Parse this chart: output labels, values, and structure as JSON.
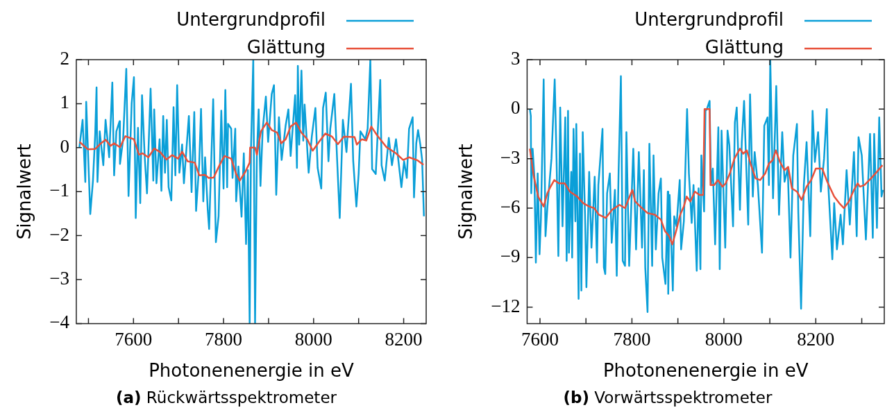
{
  "chart_data": [
    {
      "type": "line",
      "xlabel": "Photonenenergie in eV",
      "ylabel": "Signalwert",
      "legend": "top right",
      "grid": false,
      "xlim": [
        7473,
        8250
      ],
      "xticks": [
        {
          "value": 7500,
          "label": null
        },
        7600,
        {
          "value": 7700,
          "label": null
        },
        7800,
        {
          "value": 7900,
          "label": null
        },
        8000,
        {
          "value": 8100,
          "label": null
        },
        8200
      ],
      "ylim": [
        -4,
        2
      ],
      "yticks": [
        {
          "value": -4,
          "label": "−4"
        },
        {
          "value": -3,
          "label": "−3"
        },
        {
          "value": -2,
          "label": "−2"
        },
        {
          "value": -1,
          "label": "−1"
        },
        0,
        1,
        2
      ],
      "annotations": [
        "(a) Rückwärtsspektrometer"
      ],
      "series": [
        {
          "name": "Untergrundprofil",
          "color": "#0a9fd8",
          "x": [
            7480,
            7487,
            7493,
            7495,
            7504,
            7510,
            7515,
            7518,
            7520,
            7525,
            7533,
            7538,
            7546,
            7553,
            7557,
            7562,
            7569,
            7570,
            7577,
            7584,
            7589,
            7596,
            7601,
            7605,
            7610,
            7615,
            7619,
            7625,
            7630,
            7638,
            7644,
            7646,
            7651,
            7658,
            7662,
            7666,
            7670,
            7674,
            7678,
            7684,
            7689,
            7693,
            7697,
            7702,
            7708,
            7712,
            7723,
            7729,
            7735,
            7739,
            7746,
            7750,
            7755,
            7759,
            7765,
            7768,
            7777,
            7783,
            7789,
            7795,
            7800,
            7804,
            7808,
            7810,
            7817,
            7820,
            7826,
            7828,
            7833,
            7840,
            7845,
            7850,
            7854,
            7858,
            7861,
            7866,
            7870,
            7874,
            7878,
            7882,
            7887,
            7894,
            7899,
            7907,
            7912,
            7917,
            7923,
            7929,
            7938,
            7944,
            7949,
            7959,
            7963,
            7965,
            7968,
            7973,
            7977,
            7980,
            7989,
            7996,
            8004,
            8009,
            8017,
            8021,
            8027,
            8033,
            8037,
            8046,
            8052,
            8058,
            8065,
            8073,
            8083,
            8088,
            8095,
            8100,
            8104,
            8115,
            8120,
            8126,
            8130,
            8138,
            8148,
            8151,
            8158,
            8167,
            8174,
            8183,
            8195,
            8201,
            8207,
            8212,
            8220,
            8223,
            8228,
            8232,
            8237,
            8241,
            8245
          ],
          "values": [
            0.01,
            0.63,
            -0.78,
            1.04,
            -1.51,
            -0.75,
            0.31,
            1.37,
            -0.78,
            0.37,
            -0.4,
            0.63,
            -0.22,
            1.48,
            -0.63,
            0.37,
            0.6,
            -0.37,
            0.19,
            1.79,
            -1.1,
            1.01,
            1.6,
            -1.6,
            0.45,
            -1.26,
            1.19,
            -0.22,
            -1.04,
            1.34,
            -0.75,
            0.87,
            -0.81,
            0.19,
            -0.98,
            0.72,
            -0.57,
            0.63,
            -0.9,
            -1.2,
            0.92,
            -0.63,
            1.42,
            -0.57,
            0.07,
            -0.81,
            0.72,
            -1.01,
            0.81,
            -1.44,
            -0.37,
            0.88,
            -1.22,
            -0.22,
            -1.43,
            -1.85,
            1.1,
            -2.15,
            -1.56,
            0.84,
            -0.93,
            1.31,
            -0.9,
            0.54,
            0.43,
            -0.69,
            0.43,
            -1.22,
            -0.43,
            -1.57,
            -0.13,
            -2.19,
            -0.51,
            -4,
            0,
            2,
            -4,
            -0.16,
            0.87,
            -0.87,
            0.43,
            1.16,
            0.13,
            1.22,
            1.42,
            -1.07,
            0.69,
            -0.28,
            0.51,
            0.87,
            -0.19,
            1.19,
            -0.46,
            1.86,
            0.07,
            1.75,
            0.16,
            0.98,
            -0.57,
            0.25,
            0.9,
            -0.46,
            -0.93,
            0.9,
            1.25,
            -0.31,
            0.43,
            1.22,
            -0.22,
            -1.6,
            0.63,
            -0.1,
            1.45,
            -0.31,
            -1.34,
            -0.6,
            0.37,
            0.19,
            0.43,
            2,
            -0.49,
            -0.6,
            1.54,
            -0.4,
            -0.75,
            0.22,
            -0.4,
            0.19,
            -0.9,
            -0.31,
            -0.69,
            0.43,
            0.69,
            -1.13,
            0.1,
            0.4,
            0.07,
            -0.28,
            -1.56
          ]
        },
        {
          "name": "Glättung",
          "color": "#e8503a",
          "x": [
            7480,
            7499,
            7515,
            7528,
            7538,
            7549,
            7557,
            7570,
            7582,
            7601,
            7612,
            7620,
            7633,
            7646,
            7659,
            7673,
            7686,
            7699,
            7708,
            7720,
            7736,
            7746,
            7759,
            7767,
            7778,
            7791,
            7802,
            7817,
            7828,
            7836,
            7849,
            7858,
            7859,
            7870,
            7874,
            7883,
            7896,
            7907,
            7919,
            7928,
            7938,
            7949,
            7961,
            7973,
            7986,
            7998,
            8012,
            8026,
            8041,
            8054,
            8067,
            8091,
            8096,
            8107,
            8117,
            8128,
            8141,
            8162,
            8183,
            8199,
            8212,
            8231,
            8244
          ],
          "values": [
            0.13,
            -0.04,
            -0.03,
            0.1,
            0.18,
            0.04,
            0.1,
            0.01,
            0.26,
            0.19,
            -0.16,
            -0.13,
            -0.22,
            -0.02,
            -0.1,
            -0.27,
            -0.17,
            -0.25,
            -0.09,
            -0.31,
            -0.34,
            -0.63,
            -0.62,
            -0.69,
            -0.68,
            -0.4,
            -0.19,
            -0.25,
            -0.6,
            -0.75,
            -0.54,
            -0.34,
            0,
            0,
            -0.16,
            0.37,
            0.57,
            0.4,
            0.34,
            0.1,
            0.19,
            0.48,
            0.57,
            0.34,
            0.19,
            -0.07,
            0.13,
            0.32,
            0.25,
            0.08,
            0.25,
            0.24,
            0.07,
            0.19,
            0.16,
            0.48,
            0.28,
            0.01,
            -0.13,
            -0.28,
            -0.22,
            -0.29,
            -0.39
          ]
        }
      ]
    },
    {
      "type": "line",
      "xlabel": "Photonenenergie in eV",
      "ylabel": "Signalwert",
      "legend": "top right",
      "grid": false,
      "xlim": [
        7572,
        8349
      ],
      "xticks": [
        7600,
        {
          "value": 7700,
          "label": null
        },
        7800,
        {
          "value": 7900,
          "label": null
        },
        8000,
        {
          "value": 8100,
          "label": null
        },
        8200,
        {
          "value": 8300,
          "label": null
        }
      ],
      "ylim": [
        -13,
        3
      ],
      "yticks": [
        {
          "value": -12,
          "label": "−12"
        },
        {
          "value": -9,
          "label": "−9"
        },
        {
          "value": -6,
          "label": "−6"
        },
        {
          "value": -3,
          "label": "−3"
        },
        0,
        3
      ],
      "annotations": [
        "(b) Vorwärtsspektrometer"
      ],
      "series": [
        {
          "name": "Untergrundprofil",
          "color": "#0a9fd8",
          "x": [
            7578,
            7580,
            7581,
            7584,
            7588,
            7591,
            7595,
            7599,
            7602,
            7608,
            7612,
            7616,
            7625,
            7632,
            7636,
            7640,
            7644,
            7649,
            7655,
            7658,
            7661,
            7663,
            7668,
            7670,
            7673,
            7677,
            7679,
            7684,
            7687,
            7690,
            7693,
            7698,
            7701,
            7707,
            7712,
            7719,
            7724,
            7727,
            7736,
            7739,
            7742,
            7746,
            7752,
            7756,
            7763,
            7767,
            7771,
            7776,
            7780,
            7785,
            7788,
            7794,
            7803,
            7809,
            7815,
            7822,
            7826,
            7829,
            7834,
            7838,
            7844,
            7847,
            7852,
            7858,
            7863,
            7866,
            7873,
            7878,
            7879,
            7882,
            7889,
            7892,
            7897,
            7904,
            7907,
            7913,
            7920,
            7924,
            7930,
            7934,
            7941,
            7945,
            7949,
            7951,
            7957,
            7960,
            7963,
            7969,
            7972,
            7976,
            7981,
            7988,
            7991,
            7995,
            8003,
            8008,
            8012,
            8020,
            8024,
            8028,
            8035,
            8039,
            8044,
            8053,
            8057,
            8063,
            8067,
            8074,
            8083,
            8088,
            8095,
            8098,
            8101,
            8107,
            8114,
            8120,
            8127,
            8132,
            8139,
            8145,
            8151,
            8159,
            8162,
            8168,
            8174,
            8180,
            8188,
            8193,
            8198,
            8205,
            8211,
            8218,
            8224,
            8227,
            8236,
            8240,
            8246,
            8254,
            8259,
            8267,
            8274,
            8283,
            8289,
            8293,
            8300,
            8309,
            8318,
            8324,
            8327,
            8333,
            8338,
            8343,
            8346
          ],
          "values": [
            0,
            -0.4,
            -5.1,
            -2.4,
            -4.2,
            -9.3,
            -3.9,
            -8.8,
            -6.7,
            1.8,
            -7.7,
            -6,
            -3,
            1.8,
            -3,
            -8.9,
            0.1,
            -7.1,
            -0.5,
            -9.2,
            -0.1,
            -8.7,
            -3.8,
            -9,
            -1.2,
            -6.8,
            -0.9,
            -11.5,
            -2.7,
            -11,
            -1.4,
            -6.4,
            -10.8,
            -3.8,
            -8.4,
            -4.1,
            -9.3,
            -4.6,
            -1.2,
            -9.6,
            -10,
            -5.1,
            -3.9,
            -8.1,
            -4.9,
            -10.1,
            -3.8,
            2,
            -9.2,
            -9.5,
            -1.4,
            -9.5,
            -2.4,
            -8.5,
            -2.6,
            -8.4,
            -3.7,
            -9.6,
            -12.3,
            -2.1,
            -9.5,
            -2.8,
            -8.5,
            -5.1,
            -4.2,
            -9,
            -10.6,
            -5,
            -11.2,
            -5.2,
            -11,
            -6.5,
            -7.1,
            -4.3,
            -8.5,
            -6.8,
            0,
            -3.9,
            -6.9,
            -4.6,
            -9.8,
            -4.8,
            -9.7,
            -2.8,
            -6.2,
            -0.1,
            0,
            0.5,
            -4.6,
            -3.6,
            -8.2,
            -1.1,
            -9.7,
            -1.3,
            -8.4,
            -1.3,
            -2.2,
            -7.1,
            -0.8,
            0.1,
            -6.1,
            -2,
            0.5,
            -7,
            0.9,
            -5.3,
            -2.6,
            -4.6,
            -8.7,
            -1,
            -0.5,
            -4.6,
            3,
            -5.4,
            1.4,
            -6.4,
            -1.4,
            -4.4,
            -3.6,
            -9,
            -2.8,
            -0.9,
            -6.3,
            -12.1,
            -4.6,
            -2,
            -7.7,
            -0.1,
            -3.2,
            -1.4,
            -5,
            -3,
            0,
            -4.5,
            -9.1,
            -5.7,
            -8.5,
            -6.4,
            -8.2,
            -3.7,
            -7,
            -2.6,
            -7.7,
            -1.7,
            -2.8,
            -7.9,
            -1.5,
            -7.8,
            -1.5,
            -7.2,
            -0.5,
            -5.3,
            -4.9
          ]
        },
        {
          "name": "Glättung",
          "color": "#e8503a",
          "x": [
            7578,
            7586,
            7596,
            7608,
            7616,
            7623,
            7631,
            7641,
            7654,
            7665,
            7681,
            7694,
            7707,
            7718,
            7728,
            7743,
            7757,
            7773,
            7785,
            7792,
            7801,
            7807,
            7818,
            7834,
            7850,
            7863,
            7872,
            7881,
            7888,
            7897,
            7905,
            7913,
            7919,
            7927,
            7937,
            7947,
            7955,
            7958,
            7969,
            7971,
            7979,
            7987,
            7997,
            8004,
            8013,
            8023,
            8035,
            8042,
            8050,
            8058,
            8069,
            8079,
            8090,
            8098,
            8106,
            8113,
            8122,
            8132,
            8140,
            8148,
            8159,
            8169,
            8180,
            8190,
            8200,
            8214,
            8225,
            8240,
            8251,
            8261,
            8272,
            8283,
            8291,
            8296,
            8306,
            8320,
            8333,
            8345
          ],
          "values": [
            -2.4,
            -4,
            -5.3,
            -5.9,
            -5.1,
            -4.7,
            -4.3,
            -4.5,
            -4.5,
            -5,
            -5.3,
            -5.7,
            -5.9,
            -6,
            -6.4,
            -6.6,
            -6.1,
            -5.8,
            -6,
            -5.5,
            -4.9,
            -5.6,
            -5.9,
            -6.3,
            -6.4,
            -6.7,
            -7.4,
            -7.7,
            -8.2,
            -7.3,
            -6.4,
            -5.9,
            -5.3,
            -5.6,
            -5,
            -5.2,
            -5.2,
            0,
            0,
            -4.6,
            -4.6,
            -4.3,
            -4.7,
            -4.5,
            -3.9,
            -3,
            -2.4,
            -2.7,
            -2.5,
            -3.3,
            -4.2,
            -4.3,
            -3.9,
            -3.3,
            -3.1,
            -2.5,
            -3.2,
            -3.7,
            -3.5,
            -4.8,
            -5,
            -5.5,
            -4.7,
            -4.3,
            -3.6,
            -3.6,
            -4.4,
            -5.3,
            -5.7,
            -6,
            -5.6,
            -4.9,
            -4.5,
            -4.7,
            -4.6,
            -4.2,
            -3.8,
            -3.4
          ]
        }
      ]
    }
  ]
}
